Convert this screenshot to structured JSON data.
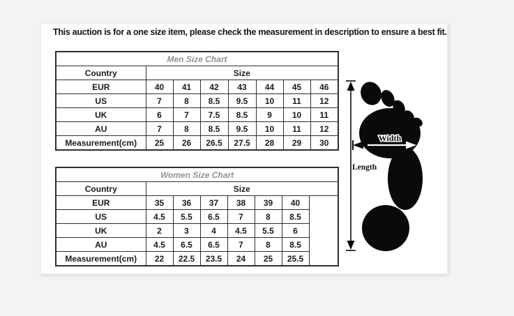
{
  "notice": "This auction is for a one size item, please check the measurement in description to ensure a best fit.",
  "men_chart": {
    "title": "Men Size Chart",
    "country_header": "Country",
    "size_header": "Size",
    "rows": [
      {
        "label": "EUR",
        "values": [
          "40",
          "41",
          "42",
          "43",
          "44",
          "45",
          "46"
        ]
      },
      {
        "label": "US",
        "values": [
          "7",
          "8",
          "8.5",
          "9.5",
          "10",
          "11",
          "12"
        ]
      },
      {
        "label": "UK",
        "values": [
          "6",
          "7",
          "7.5",
          "8.5",
          "9",
          "10",
          "11"
        ]
      },
      {
        "label": "AU",
        "values": [
          "7",
          "8",
          "8.5",
          "9.5",
          "10",
          "11",
          "12"
        ]
      },
      {
        "label": "Measurement(cm)",
        "values": [
          "25",
          "26",
          "26.5",
          "27.5",
          "28",
          "29",
          "30"
        ]
      }
    ]
  },
  "women_chart": {
    "title": "Women Size Chart",
    "country_header": "Country",
    "size_header": "Size",
    "rows": [
      {
        "label": "EUR",
        "values": [
          "35",
          "36",
          "37",
          "38",
          "39",
          "40"
        ]
      },
      {
        "label": "US",
        "values": [
          "4.5",
          "5.5",
          "6.5",
          "7",
          "8",
          "8.5"
        ]
      },
      {
        "label": "UK",
        "values": [
          "2",
          "3",
          "4",
          "4.5",
          "5.5",
          "6"
        ]
      },
      {
        "label": "AU",
        "values": [
          "4.5",
          "6.5",
          "6.5",
          "7",
          "8",
          "8.5"
        ]
      },
      {
        "label": "Measurement(cm)",
        "values": [
          "22",
          "22.5",
          "23.5",
          "24",
          "25",
          "25.5"
        ]
      }
    ]
  },
  "foot_diagram": {
    "width_label": "Width",
    "length_label": "Length"
  },
  "colors": {
    "page_bg": "#f2f3f4",
    "content_bg": "#ffffff",
    "table_border": "#2d2d2d",
    "title_text": "#929292",
    "body_text": "#1a1a1a",
    "foot_fill": "#0a0a0a"
  }
}
